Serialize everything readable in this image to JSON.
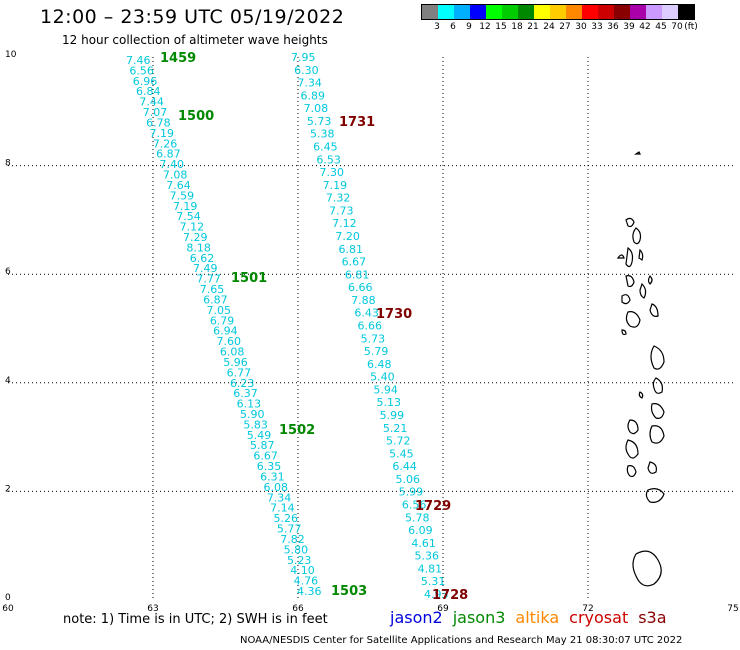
{
  "title": "12:00 – 23:59 UTC 05/19/2022",
  "subtitle": "12 hour collection of altimeter wave heights",
  "legend": {
    "colors": [
      "#808080",
      "#00ffff",
      "#00b0ff",
      "#0000ff",
      "#00ff00",
      "#00cc00",
      "#008800",
      "#ffff00",
      "#ffcc00",
      "#ff8800",
      "#ff0000",
      "#cc0000",
      "#880000",
      "#aa00aa",
      "#cc99ff",
      "#ddccff",
      "#000000"
    ],
    "labels": [
      "3",
      "6",
      "9",
      "12",
      "15",
      "18",
      "21",
      "24",
      "27",
      "30",
      "33",
      "36",
      "39",
      "42",
      "45",
      "70",
      "(ft)"
    ]
  },
  "axes": {
    "x_ticks": [
      "60",
      "63",
      "66",
      "69",
      "72",
      "75"
    ],
    "y_ticks": [
      "0",
      "2",
      "4",
      "6",
      "8",
      "10"
    ]
  },
  "track_color": "#00c8dc",
  "track_a": {
    "values": [
      "7.46",
      "6.56",
      "6.96",
      "6.84",
      "7.44",
      "7.07",
      "6.78",
      "7.19",
      "7.26",
      "6.87",
      "7.40",
      "7.08",
      "7.64",
      "7.59",
      "7.19",
      "7.54",
      "7.12",
      "7.29",
      "8.18",
      "6.62",
      "7.49",
      "7.77",
      "7.65",
      "6.87",
      "7.05",
      "6.79",
      "6.94",
      "7.60",
      "6.08",
      "5.96",
      "6.77",
      "6.23",
      "6.37",
      "6.13",
      "5.90",
      "5.83",
      "5.49",
      "5.87",
      "6.67",
      "6.35",
      "6.31",
      "6.08",
      "7.34",
      "7.14",
      "5.26",
      "5.77",
      "7.82",
      "5.80",
      "5.23",
      "4.10",
      "4.76",
      "4.36"
    ],
    "time_labels": [
      "1459",
      "1500",
      "1501",
      "1502",
      "1503"
    ],
    "time_color": "#008800"
  },
  "track_b": {
    "values": [
      "7.95",
      "6.30",
      "7.34",
      "6.89",
      "7.08",
      "5.73",
      "5.38",
      "6.45",
      "6.53",
      "7.30",
      "7.19",
      "7.32",
      "7.73",
      "7.12",
      "7.20",
      "6.81",
      "6.67",
      "6.81",
      "6.66",
      "7.88",
      "6.43",
      "6.66",
      "5.73",
      "5.79",
      "6.48",
      "5.40",
      "5.94",
      "5.13",
      "5.99",
      "5.21",
      "5.72",
      "5.45",
      "6.44",
      "5.06",
      "5.99",
      "6.56",
      "5.78",
      "6.09",
      "4.61",
      "5.36",
      "4.81",
      "5.31",
      "4.93"
    ],
    "time_labels": [
      "1731",
      "1730",
      "1729",
      "1728"
    ],
    "time_color": "#800000"
  },
  "note": "note:  1) Time is in UTC; 2) SWH is in feet",
  "satellites": [
    {
      "name": "jason2",
      "color": "#0000dd"
    },
    {
      "name": "jason3",
      "color": "#008800"
    },
    {
      "name": "altika",
      "color": "#ff8800"
    },
    {
      "name": "cryosat",
      "color": "#cc0000"
    },
    {
      "name": "s3a",
      "color": "#880000"
    }
  ],
  "footer": "NOAA/NESDIS Center for Satellite Applications and Research     May 21 08:30:07 UTC 2022"
}
